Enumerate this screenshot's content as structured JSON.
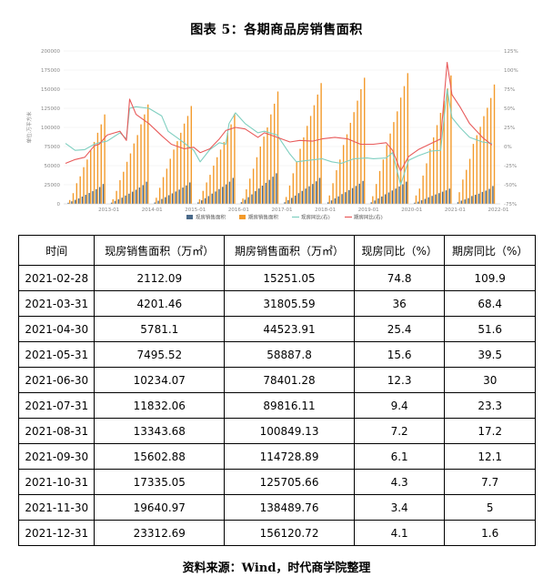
{
  "page": {
    "title": "图表 5：各期商品房销售面积",
    "source": "资料来源：Wind，时代商学院整理"
  },
  "chart_data": {
    "type": "bar",
    "y_left": {
      "label": "单位:万平方米",
      "min": 0,
      "max": 200000,
      "ticks": [
        0,
        25000,
        50000,
        75000,
        100000,
        125000,
        150000,
        175000,
        200000
      ]
    },
    "y_right": {
      "min": -75,
      "max": 125,
      "ticks": [
        "-75%",
        "-50%",
        "-25%",
        "0%",
        "25%",
        "50%",
        "75%",
        "100%",
        "125%"
      ]
    },
    "x_ticks": [
      "2013-01",
      "2014-01",
      "2015-01",
      "2016-01",
      "2017-01",
      "2018-01",
      "2019-01",
      "2020-01",
      "2021-01",
      "2022-01"
    ],
    "legend": [
      "现房销售面积",
      "期房销售面积",
      "现房同比(右)",
      "期房同比(右)"
    ],
    "colors": {
      "spot_area": "#4a6a8a",
      "futures_area": "#f39a2b",
      "spot_yoy": "#7fcfc0",
      "futures_yoy": "#e85a5a"
    },
    "years_start": 2012,
    "futures_monthly_total": [
      [
        5000,
        14000,
        27000,
        36000,
        48000,
        58000,
        70000,
        81000,
        93000,
        104000,
        117000
      ],
      [
        6000,
        17000,
        31000,
        42000,
        55000,
        66000,
        79000,
        90000,
        104000,
        117000,
        130000
      ],
      [
        8000,
        21000,
        35000,
        46000,
        59000,
        71000,
        82000,
        93000,
        105000,
        115000,
        128000
      ],
      [
        6000,
        17000,
        28000,
        38000,
        50000,
        61000,
        71000,
        81000,
        93000,
        104000,
        118000
      ],
      [
        7000,
        19000,
        33000,
        46000,
        61000,
        75000,
        88000,
        100000,
        117000,
        131000,
        147000
      ],
      [
        9000,
        24000,
        40000,
        55000,
        72000,
        87000,
        102000,
        115000,
        129000,
        143000,
        158000
      ],
      [
        11000,
        27000,
        44000,
        58000,
        77000,
        91000,
        106000,
        120000,
        135000,
        150000,
        165000
      ],
      [
        10000,
        26000,
        43000,
        58000,
        77000,
        92000,
        107000,
        121000,
        139000,
        154000,
        171000
      ],
      [
        11000,
        20000,
        37000,
        53000,
        72000,
        87000,
        103000,
        119000,
        135000,
        151000,
        168000
      ],
      [
        15251,
        31806,
        44524,
        58888,
        78401,
        89816,
        100849,
        114729,
        125706,
        138489,
        156121
      ]
    ],
    "spot_monthly_total": [
      [
        1400,
        3300,
        5200,
        7100,
        9500,
        11800,
        14200,
        16600,
        19200,
        22000,
        26000
      ],
      [
        1600,
        3800,
        5900,
        8100,
        10900,
        13300,
        15900,
        18500,
        21400,
        24500,
        29000
      ],
      [
        1800,
        4100,
        6400,
        8700,
        11300,
        13700,
        16200,
        18700,
        21300,
        24100,
        28000
      ],
      [
        1900,
        4600,
        7400,
        10200,
        13400,
        16200,
        19300,
        22200,
        25500,
        29000,
        34000
      ],
      [
        2200,
        5400,
        8800,
        12400,
        16600,
        20100,
        23800,
        27500,
        31400,
        35500,
        40000
      ],
      [
        2100,
        4800,
        7800,
        10800,
        14000,
        16900,
        20000,
        23000,
        26000,
        29500,
        34000
      ],
      [
        2000,
        4500,
        7200,
        9800,
        12800,
        15300,
        18000,
        20600,
        23400,
        26400,
        30000
      ],
      [
        2000,
        4400,
        7100,
        9600,
        12500,
        14900,
        17500,
        20000,
        22800,
        25600,
        29000
      ],
      [
        1500,
        2800,
        4700,
        6500,
        8600,
        10400,
        12300,
        14000,
        15900,
        17700,
        20000
      ],
      [
        2112,
        4201,
        5781,
        7496,
        10234,
        11832,
        13344,
        15603,
        17335,
        19641,
        23313
      ]
    ],
    "spot_yoy_series": [
      [
        0.0,
        4
      ],
      [
        0.3,
        -5
      ],
      [
        0.6,
        -4
      ],
      [
        0.9,
        3
      ],
      [
        1.05,
        5
      ],
      [
        1.3,
        7
      ],
      [
        1.7,
        18
      ],
      [
        1.9,
        10
      ],
      [
        2.0,
        50
      ],
      [
        2.2,
        52
      ],
      [
        2.6,
        50
      ],
      [
        3.0,
        40
      ],
      [
        3.2,
        20
      ],
      [
        3.6,
        8
      ],
      [
        4.0,
        -5
      ],
      [
        4.2,
        -20
      ],
      [
        4.5,
        -4
      ],
      [
        4.8,
        5
      ],
      [
        5.0,
        3
      ],
      [
        5.1,
        30
      ],
      [
        5.3,
        44
      ],
      [
        5.6,
        30
      ],
      [
        6.0,
        18
      ],
      [
        6.2,
        20
      ],
      [
        6.6,
        15
      ],
      [
        7.0,
        -10
      ],
      [
        7.2,
        -20
      ],
      [
        7.6,
        -18
      ],
      [
        8.0,
        -16
      ],
      [
        8.3,
        -20
      ],
      [
        8.6,
        -22
      ],
      [
        9.0,
        -16
      ],
      [
        9.4,
        -15
      ],
      [
        9.6,
        -16
      ],
      [
        10.0,
        -15
      ],
      [
        10.2,
        -8
      ],
      [
        10.45,
        -50
      ],
      [
        10.7,
        -18
      ],
      [
        11.0,
        -12
      ],
      [
        11.4,
        -6
      ],
      [
        11.7,
        -5
      ],
      [
        11.9,
        75
      ],
      [
        12.05,
        38
      ],
      [
        12.3,
        25
      ],
      [
        12.6,
        12
      ],
      [
        13.0,
        6
      ],
      [
        13.3,
        4
      ]
    ],
    "futures_yoy_series": [
      [
        0.0,
        -22
      ],
      [
        0.3,
        -17
      ],
      [
        0.6,
        -14
      ],
      [
        0.9,
        1
      ],
      [
        1.05,
        3
      ],
      [
        1.3,
        15
      ],
      [
        1.7,
        20
      ],
      [
        1.9,
        8
      ],
      [
        2.0,
        62
      ],
      [
        2.2,
        42
      ],
      [
        2.6,
        30
      ],
      [
        3.0,
        14
      ],
      [
        3.3,
        3
      ],
      [
        3.7,
        -3
      ],
      [
        4.0,
        -1
      ],
      [
        4.2,
        -8
      ],
      [
        4.5,
        -3
      ],
      [
        4.8,
        10
      ],
      [
        5.0,
        21
      ],
      [
        5.3,
        25
      ],
      [
        5.6,
        23
      ],
      [
        6.0,
        12
      ],
      [
        6.2,
        18
      ],
      [
        6.6,
        12
      ],
      [
        7.0,
        6
      ],
      [
        7.3,
        8
      ],
      [
        7.7,
        7
      ],
      [
        8.0,
        10
      ],
      [
        8.4,
        12
      ],
      [
        8.8,
        10
      ],
      [
        9.2,
        3
      ],
      [
        9.6,
        3
      ],
      [
        10.0,
        5
      ],
      [
        10.2,
        -5
      ],
      [
        10.45,
        -32
      ],
      [
        10.7,
        -13
      ],
      [
        11.0,
        -4
      ],
      [
        11.4,
        4
      ],
      [
        11.7,
        10
      ],
      [
        11.9,
        110
      ],
      [
        12.05,
        68
      ],
      [
        12.3,
        52
      ],
      [
        12.6,
        30
      ],
      [
        13.0,
        12
      ],
      [
        13.3,
        2
      ]
    ]
  },
  "table": {
    "headers": [
      "时间",
      "现房销售面积（万㎡）",
      "期房销售面积（万㎡）",
      "现房同比（%）",
      "期房同比（%）"
    ],
    "rows": [
      [
        "2021-02-28",
        "2112.09",
        "15251.05",
        "74.8",
        "109.9"
      ],
      [
        "2021-03-31",
        "4201.46",
        "31805.59",
        "36",
        "68.4"
      ],
      [
        "2021-04-30",
        "5781.1",
        "44523.91",
        "25.4",
        "51.6"
      ],
      [
        "2021-05-31",
        "7495.52",
        "58887.8",
        "15.6",
        "39.5"
      ],
      [
        "2021-06-30",
        "10234.07",
        "78401.28",
        "12.3",
        "30"
      ],
      [
        "2021-07-31",
        "11832.06",
        "89816.11",
        "9.4",
        "23.3"
      ],
      [
        "2021-08-31",
        "13343.68",
        "100849.13",
        "7.2",
        "17.2"
      ],
      [
        "2021-09-30",
        "15602.88",
        "114728.89",
        "6.1",
        "12.1"
      ],
      [
        "2021-10-31",
        "17335.05",
        "125705.66",
        "4.3",
        "7.7"
      ],
      [
        "2021-11-30",
        "19640.97",
        "138489.76",
        "3.4",
        "5"
      ],
      [
        "2021-12-31",
        "23312.69",
        "156120.72",
        "4.1",
        "1.6"
      ]
    ]
  }
}
